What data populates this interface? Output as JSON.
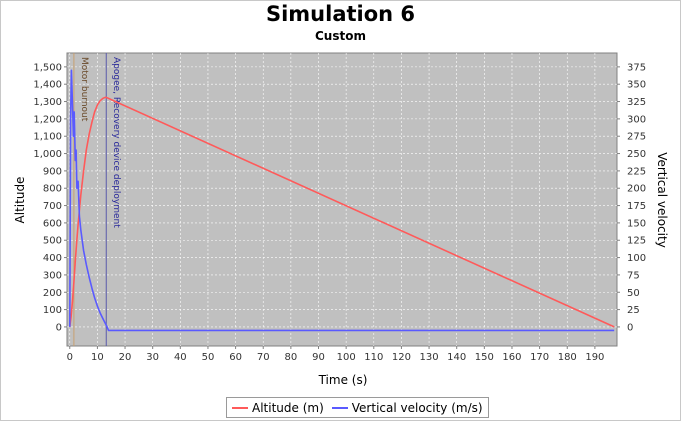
{
  "chart_data": {
    "type": "line",
    "title": "Simulation 6",
    "subtitle": "Custom",
    "xlabel": "Time (s)",
    "ylabel_left": "Altitude",
    "ylabel_right": "Vertical velocity",
    "xlim": [
      -1,
      198
    ],
    "ylim_left": [
      -110,
      1580
    ],
    "ylim_right": [
      -27.5,
      395
    ],
    "x_ticks": [
      "0",
      "10",
      "20",
      "30",
      "40",
      "50",
      "60",
      "70",
      "80",
      "90",
      "100",
      "110",
      "120",
      "130",
      "140",
      "150",
      "160",
      "170",
      "180",
      "190"
    ],
    "y_left_ticks": [
      "0",
      "100",
      "200",
      "300",
      "400",
      "500",
      "600",
      "700",
      "800",
      "900",
      "1,000",
      "1,100",
      "1,200",
      "1,300",
      "1,400",
      "1,500"
    ],
    "y_right_ticks": [
      "0",
      "25",
      "50",
      "75",
      "100",
      "125",
      "150",
      "175",
      "200",
      "225",
      "250",
      "275",
      "300",
      "325",
      "350",
      "375"
    ],
    "grid": true,
    "legend_position": "bottom",
    "series": [
      {
        "name": "Altitude (m)",
        "axis": "left",
        "color": "#ff5a5a",
        "x": [
          0,
          0.5,
          1,
          1.5,
          2,
          2.5,
          3,
          4,
          5,
          6,
          7,
          8,
          9,
          10,
          11,
          12,
          13,
          14,
          197
        ],
        "y": [
          0,
          60,
          150,
          260,
          380,
          490,
          590,
          760,
          900,
          1020,
          1110,
          1180,
          1240,
          1280,
          1305,
          1318,
          1325,
          1318,
          0
        ]
      },
      {
        "name": "Vertical velocity (m/s)",
        "axis": "right",
        "color": "#5a5aff",
        "x": [
          0,
          0.3,
          0.6,
          1,
          1.3,
          1.6,
          2,
          2.3,
          2.6,
          3,
          3.5,
          4,
          5,
          6,
          7,
          8,
          9,
          10,
          11,
          12,
          13,
          13.5,
          14,
          197
        ],
        "y": [
          0,
          300,
          370,
          320,
          275,
          310,
          240,
          255,
          200,
          210,
          160,
          140,
          110,
          90,
          72,
          56,
          42,
          30,
          20,
          12,
          4,
          0,
          -5,
          -5
        ]
      }
    ],
    "events": [
      {
        "label": "Motor burnout",
        "x": 1.5,
        "color": "#c8a070"
      },
      {
        "label": "Apogee, Recovery device deployment",
        "x": 13.2,
        "color": "#5a5aaa"
      }
    ]
  }
}
